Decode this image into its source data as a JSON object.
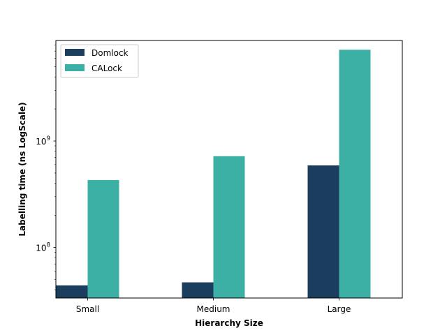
{
  "chart_data": {
    "type": "bar",
    "title": "",
    "xlabel": "Hierarchy Size",
    "ylabel": "Labelling time (ns LogScale)",
    "yscale": "log",
    "ylim": [
      33500000,
      8800000000
    ],
    "categories": [
      "Small",
      "Medium",
      "Large"
    ],
    "series": [
      {
        "name": "Domlock",
        "color": "#1b3e5e",
        "values": [
          44000000,
          47000000,
          590000000
        ]
      },
      {
        "name": "CALock",
        "color": "#3cb0a5",
        "values": [
          430000000,
          720000000,
          7200000000
        ]
      }
    ],
    "yticks": [
      {
        "value": 100000000,
        "base": "10",
        "exp": "8"
      },
      {
        "value": 1000000000,
        "base": "10",
        "exp": "9"
      }
    ],
    "legend": "top-left",
    "grid": false
  }
}
